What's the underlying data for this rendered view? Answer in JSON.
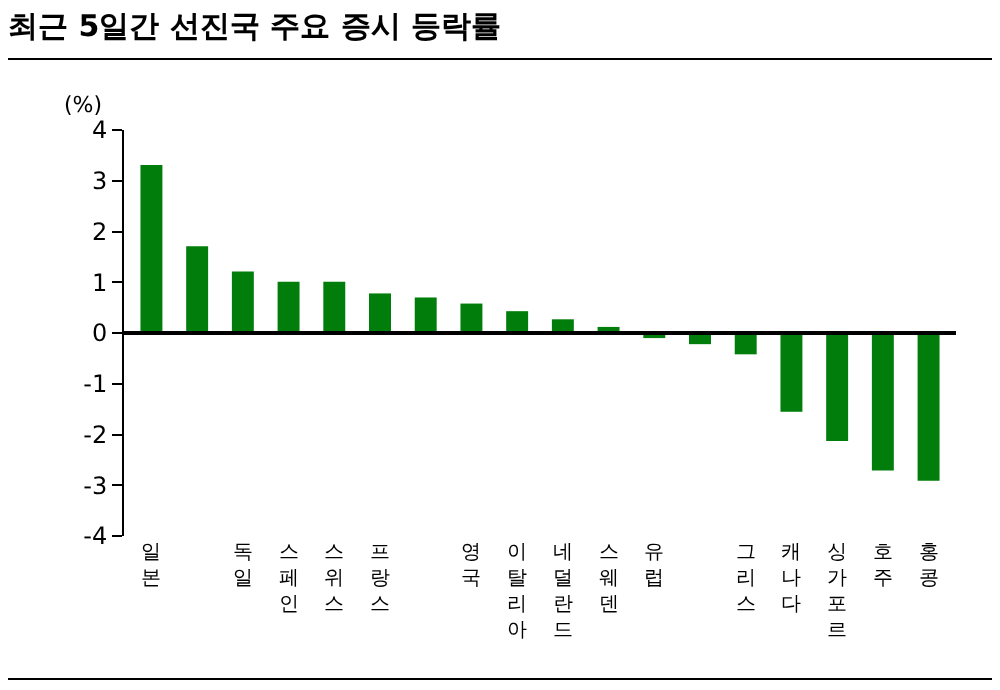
{
  "chart_data": {
    "type": "bar",
    "title": "최근 5일간 선진국 주요 증시 등락률",
    "ylabel": "(%)",
    "categories": [
      "일본",
      null,
      "독일",
      "스페인",
      "스위스",
      "프랑스",
      null,
      "영국",
      "이탈리아",
      "네덜란드",
      "스웨덴",
      "유럽",
      null,
      "그리스",
      "캐나다",
      "싱가포르",
      "호주",
      "홍콩"
    ],
    "values": [
      3.31,
      1.71,
      1.21,
      1.01,
      1.01,
      0.78,
      0.7,
      0.58,
      0.43,
      0.27,
      0.12,
      -0.1,
      -0.22,
      -0.42,
      -1.55,
      -2.13,
      -2.71,
      -2.91
    ],
    "color": "#007d0a",
    "ylim": [
      -4,
      4
    ],
    "yticks": [
      -4,
      -3,
      -2,
      -1,
      0,
      1,
      2,
      3,
      4
    ]
  }
}
